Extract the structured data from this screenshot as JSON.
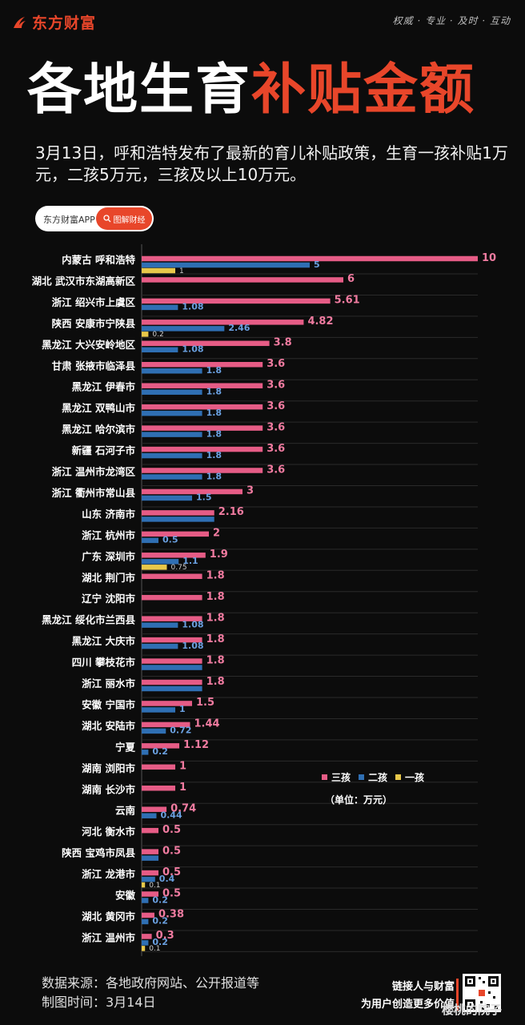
{
  "header": {
    "brand": "东方财富",
    "slogan": "权威 · 专业 · 及时 · 互动"
  },
  "title": {
    "part1": "各地生育",
    "part2": "补贴金额"
  },
  "subtitle": "3月13日，呼和浩特发布了最新的育儿补贴政策，生育一孩补贴1万元，二孩5万元，三孩及以上10万元。",
  "app_pill": {
    "left": "东方财富APP",
    "right": "图解财经"
  },
  "colors": {
    "third": "#e65c86",
    "second": "#2f6fb3",
    "first": "#e8c84a",
    "accent": "#e8462a"
  },
  "chart_data": {
    "type": "bar",
    "orientation": "horizontal",
    "categories": [
      "内蒙古 呼和浩特",
      "湖北 武汉市东湖高新区",
      "浙江 绍兴市上虞区",
      "陕西 安康市宁陕县",
      "黑龙江 大兴安岭地区",
      "甘肃 张掖市临泽县",
      "黑龙江 伊春市",
      "黑龙江 双鸭山市",
      "黑龙江 哈尔滨市",
      "新疆 石河子市",
      "浙江 温州市龙湾区",
      "浙江 衢州市常山县",
      "山东 济南市",
      "浙江 杭州市",
      "广东 深圳市",
      "湖北 荆门市",
      "辽宁 沈阳市",
      "黑龙江 绥化市兰西县",
      "黑龙江 大庆市",
      "四川 攀枝花市",
      "浙江 丽水市",
      "安徽 宁国市",
      "湖北 安陆市",
      "宁夏",
      "湖南 浏阳市",
      "湖南 长沙市",
      "云南",
      "河北 衡水市",
      "陕西 宝鸡市凤县",
      "浙江 龙港市",
      "安徽",
      "湖北 黄冈市",
      "浙江 温州市"
    ],
    "series": [
      {
        "name": "三孩",
        "values": [
          10,
          6,
          5.61,
          4.82,
          3.8,
          3.6,
          3.6,
          3.6,
          3.6,
          3.6,
          3.6,
          3,
          2.16,
          2,
          1.9,
          1.8,
          1.8,
          1.8,
          1.8,
          1.8,
          1.8,
          1.5,
          1.44,
          1.12,
          1,
          1,
          0.74,
          0.5,
          0.5,
          0.5,
          0.5,
          0.38,
          0.3
        ],
        "labels": [
          "10",
          "6",
          "5.61",
          "4.82",
          "3.8",
          "3.6",
          "3.6",
          "3.6",
          "3.6",
          "3.6",
          "3.6",
          "3",
          "2.16",
          "2",
          "1.9",
          "1.8",
          "1.8",
          "1.8",
          "1.8",
          "1.8",
          "1.8",
          "1.5",
          "1.44",
          "1.12",
          "1",
          "1",
          "0.74",
          "0.5",
          "0.5",
          "0.5",
          "0.5",
          "0.38",
          "0.3"
        ]
      },
      {
        "name": "二孩",
        "values": [
          5,
          null,
          1.08,
          2.46,
          1.08,
          1.8,
          1.8,
          1.8,
          1.8,
          1.8,
          1.8,
          1.5,
          2.16,
          0.5,
          1.1,
          null,
          null,
          1.08,
          1.08,
          1.8,
          1.8,
          1,
          0.72,
          0.2,
          null,
          null,
          0.44,
          null,
          0.5,
          0.4,
          0.2,
          0.2,
          0.2
        ],
        "labels": [
          "5",
          null,
          "1.08",
          "2.46",
          "1.08",
          "1.8",
          "1.8",
          "1.8",
          "1.8",
          "1.8",
          "1.8",
          "1.5",
          null,
          "0.5",
          "1.1",
          null,
          null,
          "1.08",
          "1.08",
          null,
          null,
          "1",
          "0.72",
          "0.2",
          null,
          null,
          "0.44",
          null,
          null,
          "0.4",
          "0.2",
          "0.2",
          "0.2"
        ]
      },
      {
        "name": "一孩",
        "values": [
          1,
          null,
          null,
          0.2,
          null,
          null,
          null,
          null,
          null,
          null,
          null,
          null,
          null,
          null,
          0.75,
          null,
          null,
          null,
          null,
          null,
          null,
          null,
          null,
          null,
          null,
          null,
          null,
          null,
          null,
          0.1,
          null,
          null,
          0.1
        ],
        "labels": [
          "1",
          null,
          null,
          "0.2",
          null,
          null,
          null,
          null,
          null,
          null,
          null,
          null,
          null,
          null,
          "0.75",
          null,
          null,
          null,
          null,
          null,
          null,
          null,
          null,
          null,
          null,
          null,
          null,
          null,
          null,
          "0.1",
          null,
          null,
          "0.1"
        ]
      }
    ],
    "legend": {
      "position": "lower-right"
    },
    "unit": "（单位：万元）",
    "xlim": [
      0,
      10
    ]
  },
  "footer": {
    "source": "数据来源：各地政府网站、公开报道等",
    "date": "制图时间：3月14日",
    "tagline1": "链接人与财富",
    "tagline2": "为用户创造更多价值",
    "watermark": "樱桃的院子"
  }
}
